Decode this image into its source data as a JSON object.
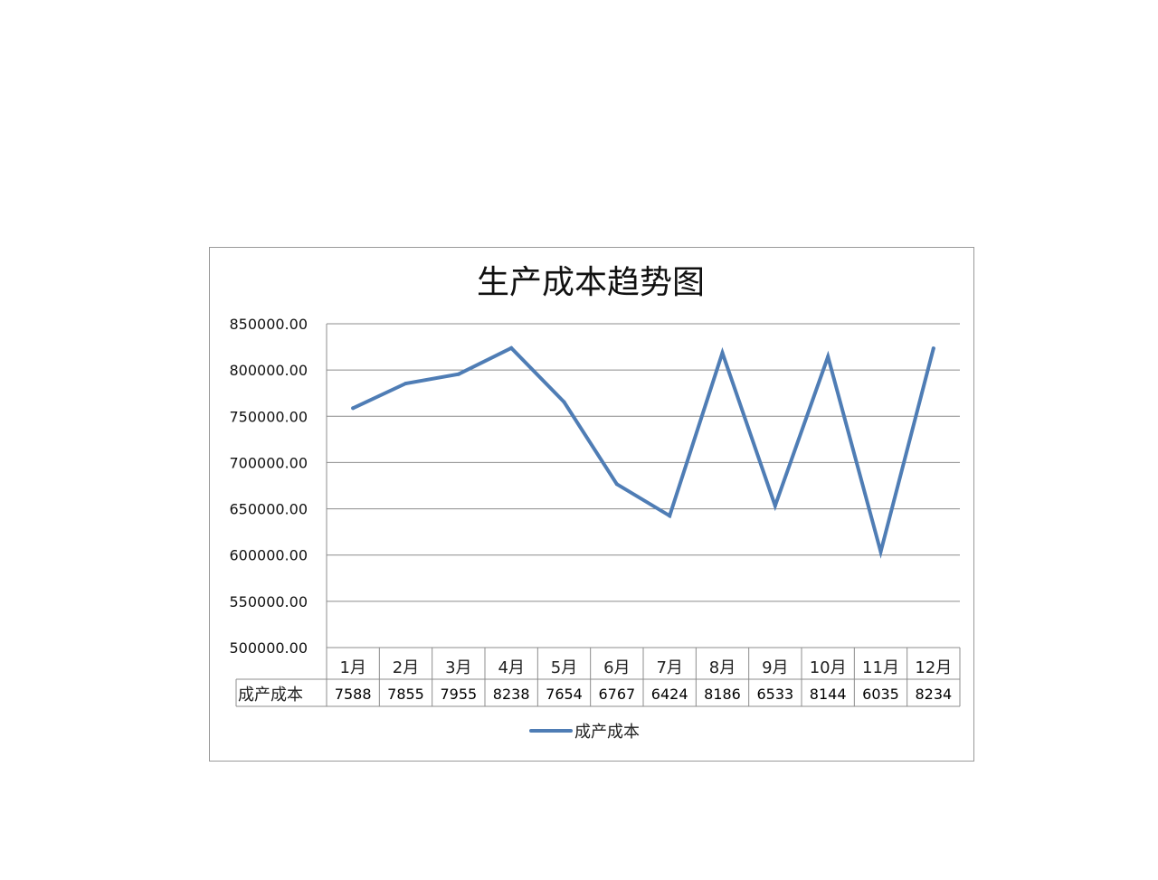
{
  "chart_data": {
    "type": "line",
    "title": "生产成本趋势图",
    "categories": [
      "1月",
      "2月",
      "3月",
      "4月",
      "5月",
      "6月",
      "7月",
      "8月",
      "9月",
      "10月",
      "11月",
      "12月"
    ],
    "series": [
      {
        "name": "成产成本",
        "values": [
          758800,
          785500,
          795500,
          823800,
          765400,
          676700,
          642400,
          818600,
          653300,
          814400,
          603500,
          823400
        ],
        "table_labels": [
          "7588",
          "7855",
          "7955",
          "8238",
          "7654",
          "6767",
          "6424",
          "8186",
          "6533",
          "8144",
          "6035",
          "8234"
        ]
      }
    ],
    "yticks": [
      "850000.00",
      "800000.00",
      "750000.00",
      "700000.00",
      "650000.00",
      "600000.00",
      "550000.00",
      "500000.00"
    ],
    "ylim": [
      500000,
      850000
    ],
    "grid": true,
    "legend": "bottom",
    "data_table": true,
    "line_color": "#4f7db5",
    "grid_color": "#8c8c8c"
  }
}
